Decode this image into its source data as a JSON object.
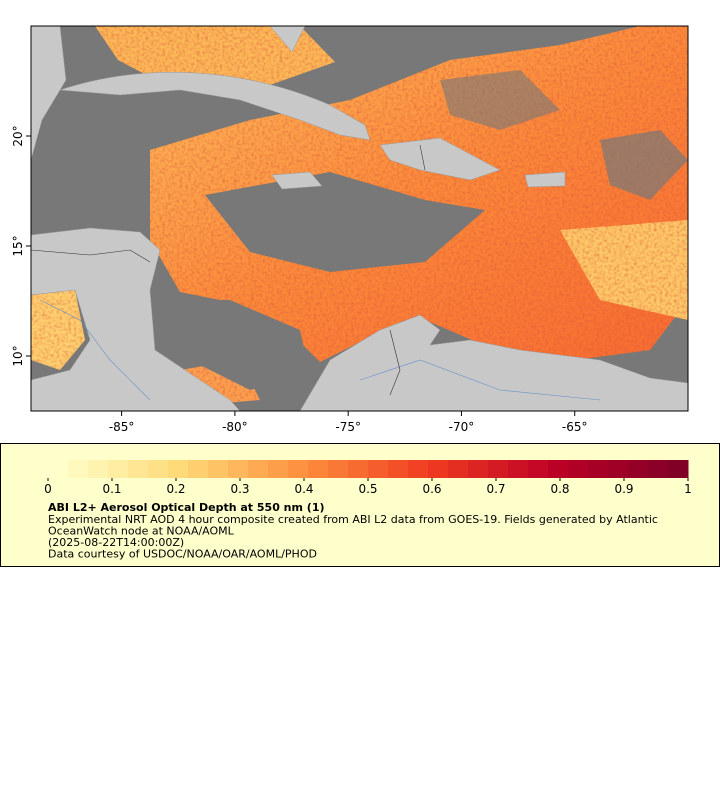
{
  "map": {
    "xlim": [
      -89,
      -60
    ],
    "ylim": [
      7.5,
      25
    ],
    "xticks": [
      {
        "value": -85,
        "label": "-85°"
      },
      {
        "value": -80,
        "label": "-80°"
      },
      {
        "value": -75,
        "label": "-75°"
      },
      {
        "value": -70,
        "label": "-70°"
      },
      {
        "value": -65,
        "label": "-65°"
      }
    ],
    "yticks": [
      {
        "value": 10,
        "label": "10°"
      },
      {
        "value": 15,
        "label": "15°"
      },
      {
        "value": 20,
        "label": "20°"
      }
    ]
  },
  "colorbar": {
    "range": [
      0,
      1
    ],
    "ticks": [
      0,
      0.1,
      0.2,
      0.3,
      0.4,
      0.5,
      0.6,
      0.7,
      0.8,
      0.9,
      1
    ]
  },
  "legend": {
    "title": "ABI L2+ Aerosol Optical Depth at 550 nm (1)",
    "lines": [
      "Experimental NRT AOD 4 hour composite created from ABI L2 data from GOES-19. Fields generated by Atlantic",
      "OceanWatch node at NOAA/AOML",
      "(2025-08-22T14:00:00Z)",
      "Data courtesy of USDOC/NOAA/OAR/AOML/PHOD"
    ]
  }
}
